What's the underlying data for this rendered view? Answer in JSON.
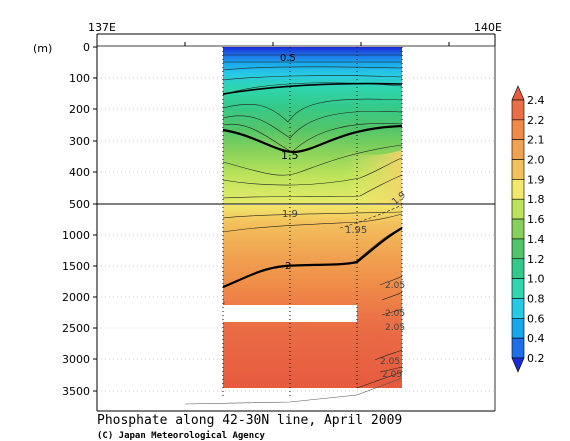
{
  "chart_data": {
    "type": "heatmap",
    "title": "Phosphate along 42-30N line, April 2009",
    "credit": "(C) Japan Meteorological Agency",
    "y_unit_label": "(m)",
    "x_tick_labels": [
      "137E",
      "140E"
    ],
    "y_tick_labels_upper": [
      "0",
      "100",
      "200",
      "300",
      "400",
      "500"
    ],
    "y_tick_labels_lower": [
      "1000",
      "1500",
      "2000",
      "2500",
      "3000",
      "3500"
    ],
    "depth_break_m": 500,
    "contour_labels": [
      {
        "text": "0.5"
      },
      {
        "text": "1.5"
      },
      {
        "text": "1.9"
      },
      {
        "text": "1.95"
      },
      {
        "text": "2"
      },
      {
        "text": "1.9"
      },
      {
        "text": "2.05"
      },
      {
        "text": "2.05"
      },
      {
        "text": "2.05"
      },
      {
        "text": "2.05"
      },
      {
        "text": "2.05"
      }
    ],
    "colorbar": {
      "levels": [
        "0.2",
        "0.4",
        "0.6",
        "0.8",
        "1.0",
        "1.2",
        "1.4",
        "1.6",
        "1.8",
        "1.9",
        "2.0",
        "2.1",
        "2.2",
        "2.4"
      ],
      "colors": [
        "#1a2bd6",
        "#1d6ee8",
        "#1aa6ec",
        "#27c9e6",
        "#2fd6b0",
        "#34c98a",
        "#52c56a",
        "#86d15b",
        "#bde35a",
        "#f2e86b",
        "#f3c05c",
        "#f0a250",
        "#ef8a48",
        "#ea6e46",
        "#e65a3e"
      ]
    }
  }
}
